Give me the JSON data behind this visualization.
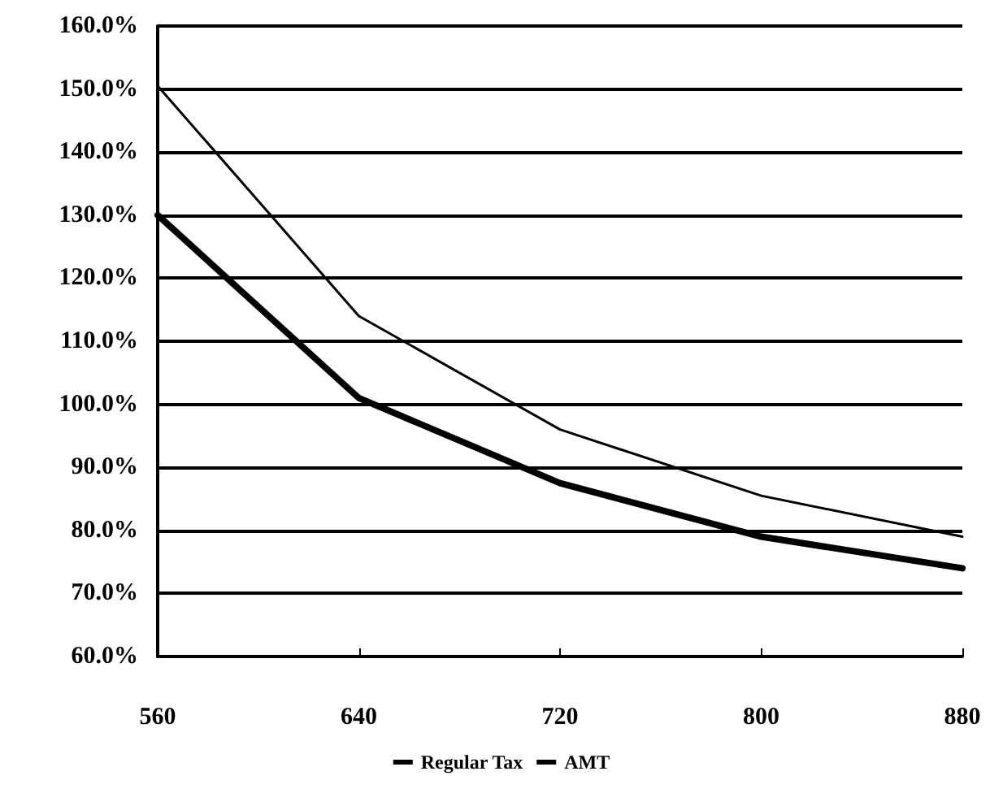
{
  "chart_data": {
    "type": "line",
    "x": [
      560,
      640,
      720,
      800,
      880
    ],
    "series": [
      {
        "name": "Regular Tax",
        "color": "#000000",
        "values": [
          130,
          101,
          87.5,
          79,
          74
        ]
      },
      {
        "name": "AMT",
        "color": "#000000",
        "values": [
          150.5,
          114,
          96,
          85.5,
          79
        ]
      }
    ],
    "xlim": [
      560,
      880
    ],
    "xticks": [
      560,
      640,
      720,
      800,
      880
    ],
    "ylim": [
      60,
      160
    ],
    "yticks": [
      {
        "value": 60,
        "label": "60.0%"
      },
      {
        "value": 70,
        "label": "70.0%"
      },
      {
        "value": 80,
        "label": "80.0%"
      },
      {
        "value": 90,
        "label": "90.0%"
      },
      {
        "value": 100,
        "label": "100.0%"
      },
      {
        "value": 110,
        "label": "110.0%"
      },
      {
        "value": 120,
        "label": "120.0%"
      },
      {
        "value": 130,
        "label": "130.0%"
      },
      {
        "value": 140,
        "label": "140.0%"
      },
      {
        "value": 150,
        "label": "150.0%"
      },
      {
        "value": 160,
        "label": "160.0%"
      }
    ],
    "grid": "y",
    "legend": "bottom",
    "marker": "none",
    "line_style": "solid"
  }
}
